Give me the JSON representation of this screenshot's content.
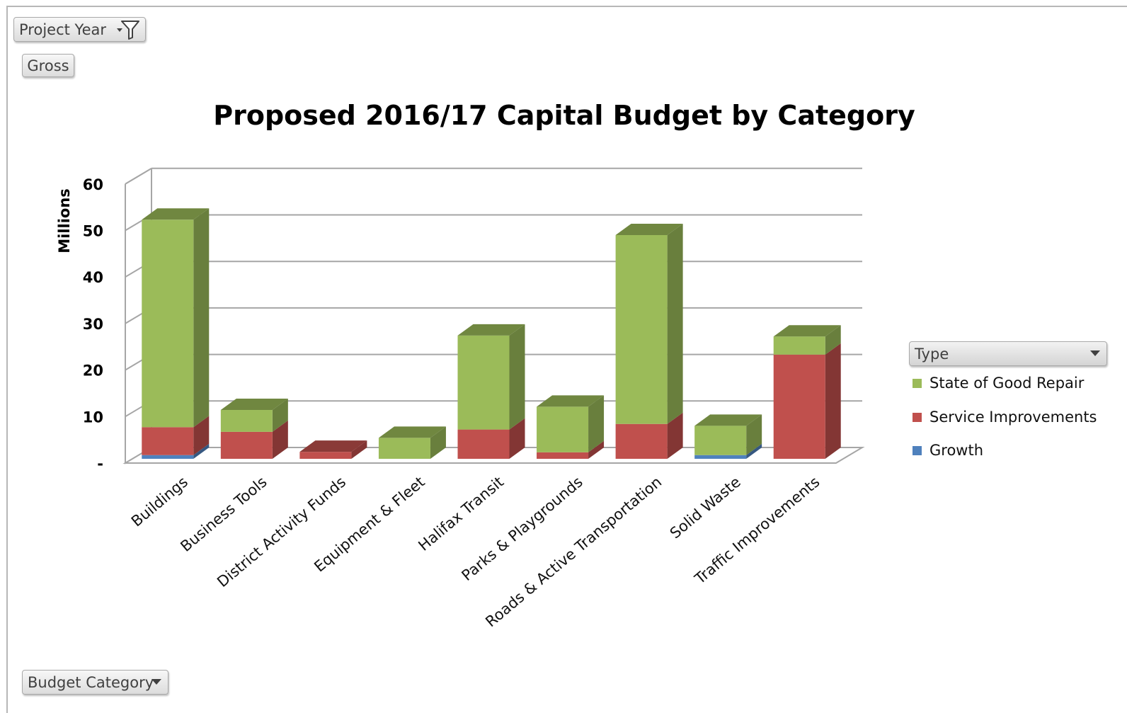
{
  "filters": {
    "project_year_label": "Project Year",
    "gross_label": "Gross",
    "budget_category_label": "Budget Category",
    "type_label": "Type"
  },
  "colors": {
    "state_of_good_repair": "#9bbb59",
    "service_improvements": "#c0504d",
    "growth": "#4f81bd"
  },
  "chart_data": {
    "type": "bar",
    "stacked": true,
    "three_d": true,
    "title": "Proposed 2016/17 Capital Budget by Category",
    "ylabel": "Millions",
    "xlabel": "",
    "ylim": [
      0,
      60
    ],
    "yticks": [
      0,
      10,
      20,
      30,
      40,
      50,
      60
    ],
    "ytick_labels": [
      "-",
      "10",
      "20",
      "30",
      "40",
      "50",
      "60"
    ],
    "grid": true,
    "legend_position": "right",
    "categories": [
      "Buildings",
      "Business Tools",
      "District Activity Funds",
      "Equipment & Fleet",
      "Halifax Transit",
      "Parks & Playgrounds",
      "Roads & Active Transportation",
      "Solid Waste",
      "Traffic Improvements"
    ],
    "series": [
      {
        "name": "Growth",
        "color": "#4f81bd",
        "values": [
          0.8,
          0,
          0,
          0,
          0,
          0,
          0,
          0.8,
          0
        ]
      },
      {
        "name": "Service Improvements",
        "color": "#c0504d",
        "values": [
          6.0,
          5.8,
          1.5,
          0,
          6.3,
          1.4,
          7.5,
          0,
          22.4
        ]
      },
      {
        "name": "State of Good Repair",
        "color": "#9bbb59",
        "values": [
          44.6,
          4.7,
          0,
          4.5,
          20.2,
          9.8,
          40.6,
          6.3,
          3.9
        ]
      }
    ],
    "legend_order": [
      "State of Good Repair",
      "Service Improvements",
      "Growth"
    ]
  }
}
